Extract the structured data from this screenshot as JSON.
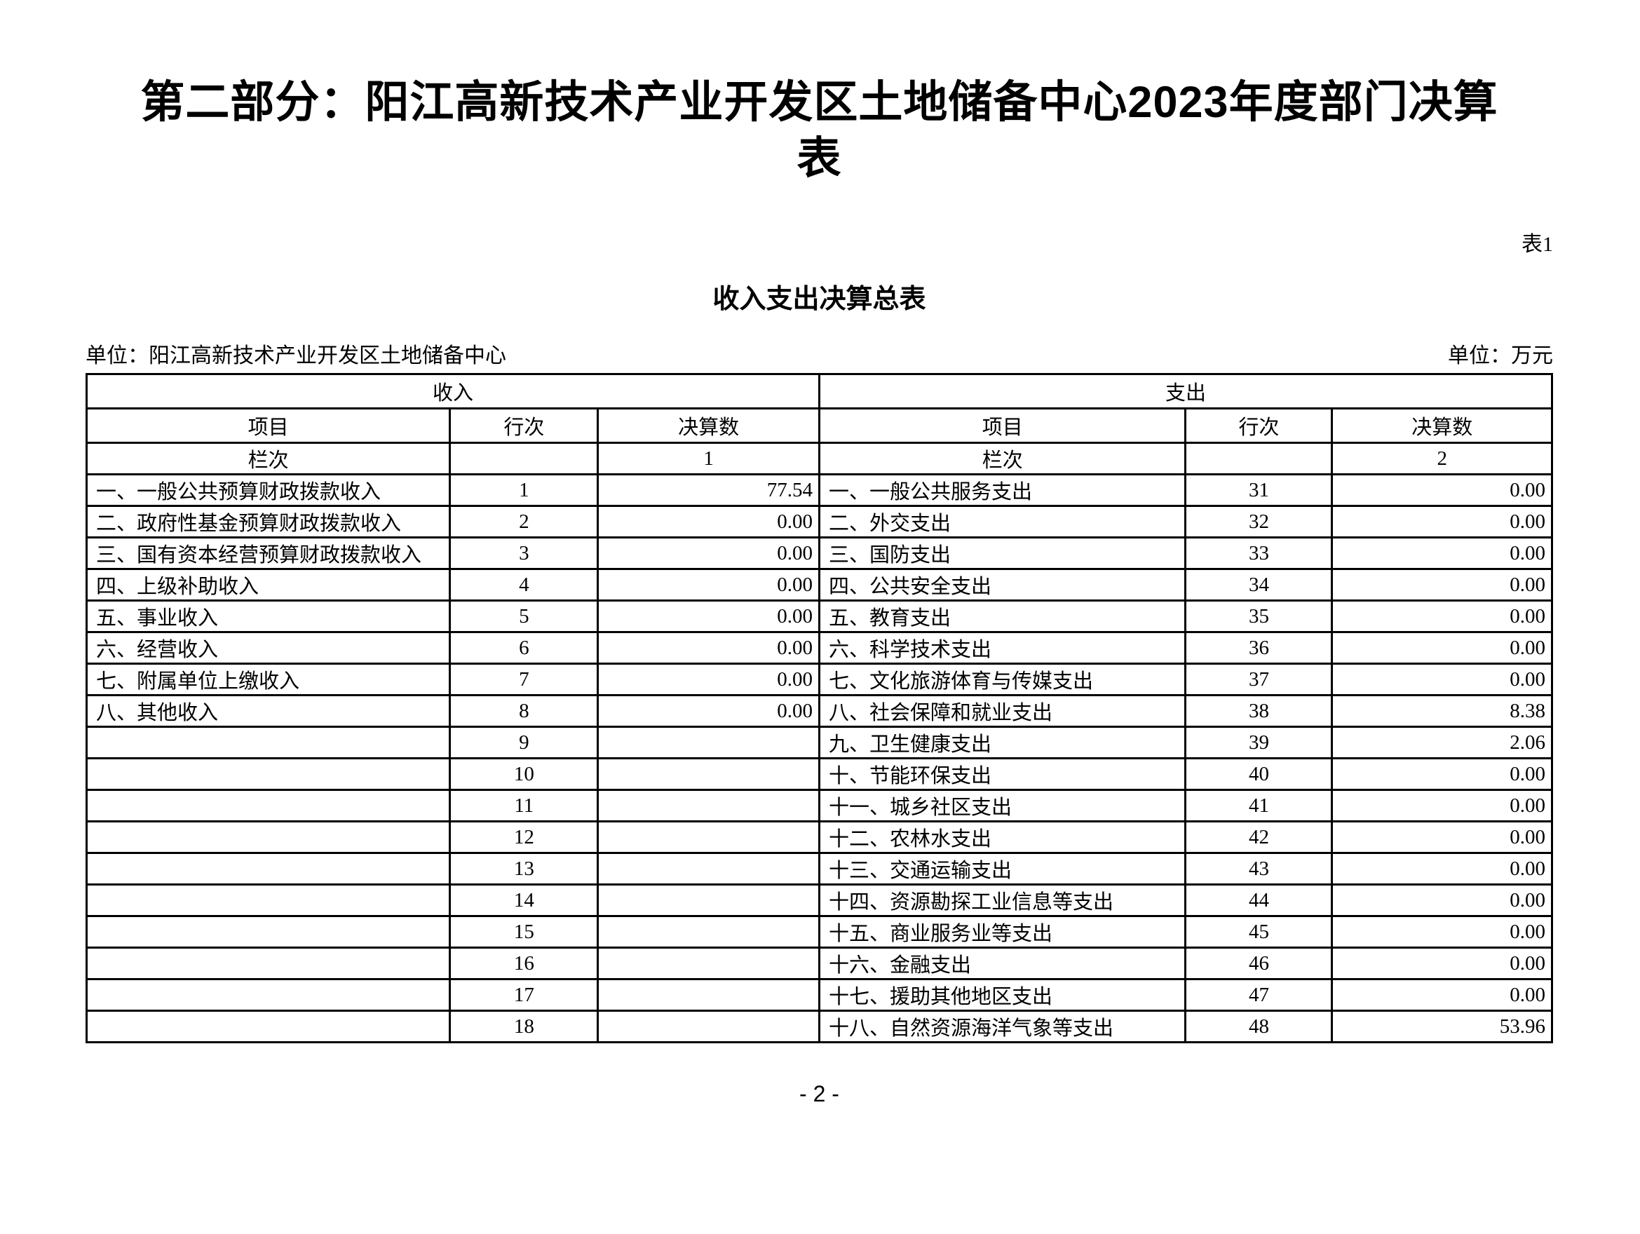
{
  "page": {
    "title": "第二部分：阳江高新技术产业开发区土地储备中心2023年度部门决算\n表",
    "table_number": "表1",
    "subtitle": "收入支出决算总表",
    "unit_left": "单位：阳江高新技术产业开发区土地储备中心",
    "unit_right": "单位：万元",
    "page_number": "- 2 -"
  },
  "table": {
    "income": {
      "section_label": "收入",
      "columns": [
        "项目",
        "行次",
        "决算数"
      ],
      "lan_ci_label": "栏次",
      "lan_ci_value": "1",
      "rows": [
        {
          "item": "一、一般公共预算财政拨款收入",
          "line": "1",
          "amount": "77.54"
        },
        {
          "item": "二、政府性基金预算财政拨款收入",
          "line": "2",
          "amount": "0.00"
        },
        {
          "item": "三、国有资本经营预算财政拨款收入",
          "line": "3",
          "amount": "0.00"
        },
        {
          "item": "四、上级补助收入",
          "line": "4",
          "amount": "0.00"
        },
        {
          "item": "五、事业收入",
          "line": "5",
          "amount": "0.00"
        },
        {
          "item": "六、经营收入",
          "line": "6",
          "amount": "0.00"
        },
        {
          "item": "七、附属单位上缴收入",
          "line": "7",
          "amount": "0.00"
        },
        {
          "item": "八、其他收入",
          "line": "8",
          "amount": "0.00"
        },
        {
          "item": "",
          "line": "9",
          "amount": ""
        },
        {
          "item": "",
          "line": "10",
          "amount": ""
        },
        {
          "item": "",
          "line": "11",
          "amount": ""
        },
        {
          "item": "",
          "line": "12",
          "amount": ""
        },
        {
          "item": "",
          "line": "13",
          "amount": ""
        },
        {
          "item": "",
          "line": "14",
          "amount": ""
        },
        {
          "item": "",
          "line": "15",
          "amount": ""
        },
        {
          "item": "",
          "line": "16",
          "amount": ""
        },
        {
          "item": "",
          "line": "17",
          "amount": ""
        },
        {
          "item": "",
          "line": "18",
          "amount": ""
        }
      ]
    },
    "expenditure": {
      "section_label": "支出",
      "columns": [
        "项目",
        "行次",
        "决算数"
      ],
      "lan_ci_label": "栏次",
      "lan_ci_value": "2",
      "rows": [
        {
          "item": "一、一般公共服务支出",
          "line": "31",
          "amount": "0.00"
        },
        {
          "item": "二、外交支出",
          "line": "32",
          "amount": "0.00"
        },
        {
          "item": "三、国防支出",
          "line": "33",
          "amount": "0.00"
        },
        {
          "item": "四、公共安全支出",
          "line": "34",
          "amount": "0.00"
        },
        {
          "item": "五、教育支出",
          "line": "35",
          "amount": "0.00"
        },
        {
          "item": "六、科学技术支出",
          "line": "36",
          "amount": "0.00"
        },
        {
          "item": "七、文化旅游体育与传媒支出",
          "line": "37",
          "amount": "0.00"
        },
        {
          "item": "八、社会保障和就业支出",
          "line": "38",
          "amount": "8.38"
        },
        {
          "item": "九、卫生健康支出",
          "line": "39",
          "amount": "2.06"
        },
        {
          "item": "十、节能环保支出",
          "line": "40",
          "amount": "0.00"
        },
        {
          "item": "十一、城乡社区支出",
          "line": "41",
          "amount": "0.00"
        },
        {
          "item": "十二、农林水支出",
          "line": "42",
          "amount": "0.00"
        },
        {
          "item": "十三、交通运输支出",
          "line": "43",
          "amount": "0.00"
        },
        {
          "item": "十四、资源勘探工业信息等支出",
          "line": "44",
          "amount": "0.00"
        },
        {
          "item": "十五、商业服务业等支出",
          "line": "45",
          "amount": "0.00"
        },
        {
          "item": "十六、金融支出",
          "line": "46",
          "amount": "0.00"
        },
        {
          "item": "十七、援助其他地区支出",
          "line": "47",
          "amount": "0.00"
        },
        {
          "item": "十八、自然资源海洋气象等支出",
          "line": "48",
          "amount": "53.96"
        }
      ]
    }
  }
}
